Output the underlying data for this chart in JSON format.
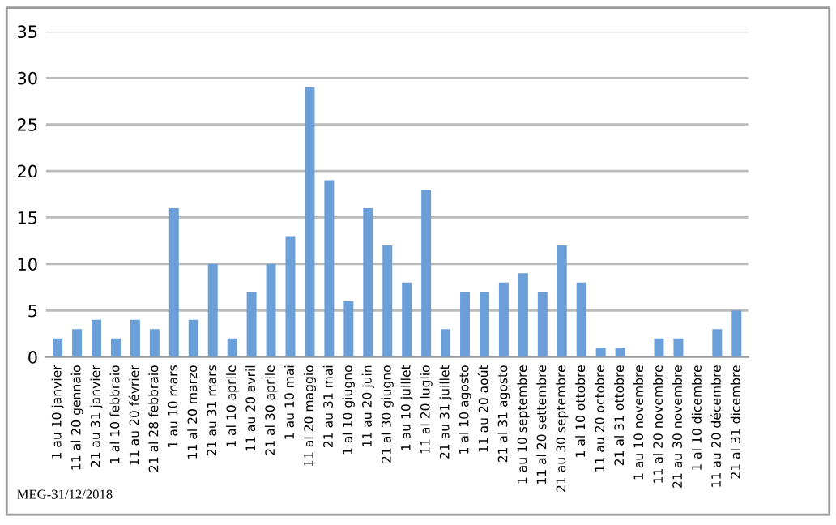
{
  "chart_data": {
    "type": "bar",
    "categories": [
      "1 au 10 janvier",
      "11 al 20 gennaio",
      "21 au 31 janvier",
      "1 al 10 febbraio",
      "11 au 20 février",
      "21 al 28 febbraio",
      "1 au 10 mars",
      "11 al 20 marzo",
      "21 au 31 mars",
      "1 al 10 aprile",
      "11 au 20 avril",
      "21 al 30 aprile",
      "1 au 10 mai",
      "11 al 20 maggio",
      "21 au 31 mai",
      "1 al 10 giugno",
      "11 au 20 juin",
      "21 al 30 giugno",
      "1 au 10 juillet",
      "11 al 20 luglio",
      "21 au 31 juillet",
      "1 al 10 agosto",
      "11 au 20 août",
      "21 al 31 agosto",
      "1 au 10 septembre",
      "11 al 20 settembre",
      "21 au 30 septembre",
      "1 al 10 ottobre",
      "11 au 20 octobre",
      "21 al 31 ottobre",
      "1 au 10 novembre",
      "11 al 20 novembre",
      "21 au 30 novembre",
      "1 al 10 dicembre",
      "11 au 20 décembre",
      "21 al 31 dicembre"
    ],
    "values": [
      2,
      3,
      4,
      2,
      4,
      3,
      16,
      4,
      10,
      2,
      7,
      10,
      13,
      29,
      19,
      6,
      16,
      12,
      8,
      18,
      3,
      7,
      7,
      8,
      9,
      7,
      12,
      8,
      1,
      1,
      0,
      2,
      2,
      0,
      3,
      5
    ],
    "color": "#6a9fd8",
    "ylim": [
      0,
      35
    ],
    "yticks": [
      0,
      5,
      10,
      15,
      20,
      25,
      30,
      35
    ],
    "grid": "y",
    "annotations": [
      "MEG-31/12/2018"
    ]
  }
}
